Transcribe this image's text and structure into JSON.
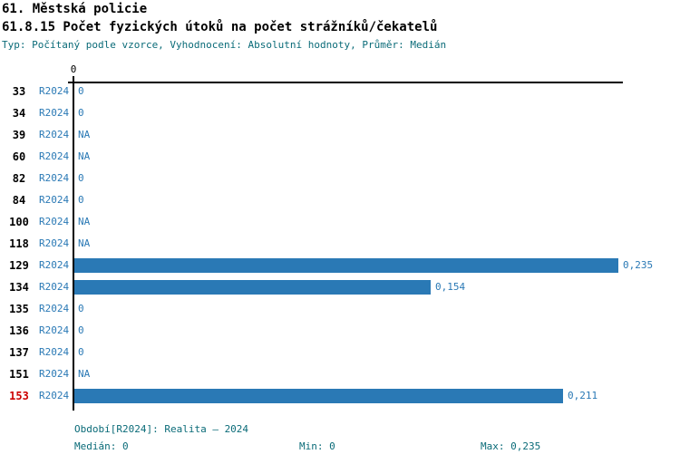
{
  "header": {
    "title": "61. Městská policie",
    "subtitle": "61.8.15 Počet fyzických útoků na počet strážníků/čekatelů",
    "meta": "Typ: Počítaný podle vzorce, Vyhodnocení: Absolutní hodnoty, Průměr: Medián"
  },
  "chart_data": {
    "type": "bar",
    "orientation": "horizontal",
    "series_label": "R2024",
    "axis_tick_label": "0",
    "xlim": [
      0,
      0.235
    ],
    "categories": [
      "33",
      "34",
      "39",
      "60",
      "82",
      "84",
      "100",
      "118",
      "129",
      "134",
      "135",
      "136",
      "137",
      "151",
      "153"
    ],
    "values": [
      0,
      0,
      null,
      null,
      0,
      0,
      null,
      null,
      0.235,
      0.154,
      0,
      0,
      0,
      null,
      0.211
    ],
    "value_labels": [
      "0",
      "0",
      "NA",
      "NA",
      "0",
      "0",
      "NA",
      "NA",
      "0,235",
      "0,154",
      "0",
      "0",
      "0",
      "NA",
      "0,211"
    ],
    "highlighted_category": "153",
    "stats": {
      "median": 0,
      "min": 0,
      "max": 0.235
    },
    "bar_color": "#2a79b5",
    "highlight_color": "#cc0000",
    "grid": false,
    "legend": false
  },
  "footer": {
    "period": "Období[R2024]: Realita – 2024",
    "median": "Medián: 0",
    "min": "Min: 0",
    "max": "Max: 0,235"
  },
  "colors": {
    "accent_blue": "#2a79b5",
    "highlight_red": "#cc0000",
    "meta_teal": "#0a6b78",
    "axis_black": "#000000"
  }
}
